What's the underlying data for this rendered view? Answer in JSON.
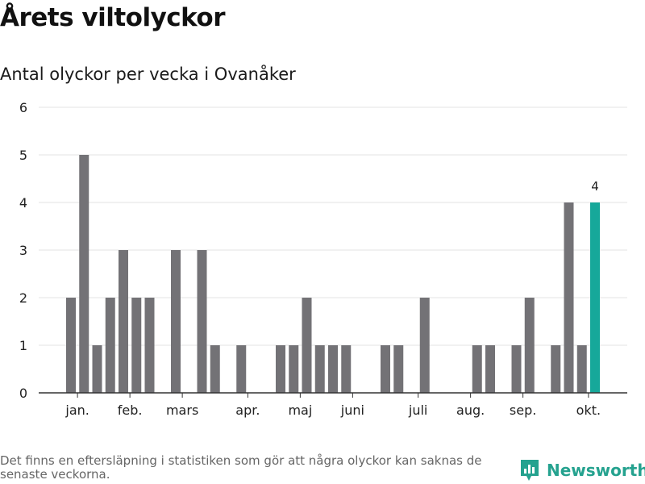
{
  "title": "Årets viltolyckor",
  "subtitle": "Antal olyckor per vecka i Ovanåker",
  "footnote": "Det finns en eftersläpning i statistiken som gör att några olyckor kan saknas de senaste veckorna.",
  "brand": {
    "name": "Newsworthy",
    "icon": "bar-chart-logo-icon",
    "color": "#25a28f"
  },
  "chart_data": {
    "type": "bar",
    "x": [
      2,
      3,
      4,
      5,
      6,
      7,
      8,
      9,
      10,
      11,
      12,
      13,
      14,
      15,
      16,
      17,
      18,
      19,
      20,
      21,
      22,
      23,
      24,
      25,
      26,
      27,
      28,
      29,
      30,
      31,
      32,
      33,
      34,
      35,
      36,
      37,
      38,
      39,
      40,
      41,
      42
    ],
    "values": [
      2,
      5,
      1,
      2,
      3,
      2,
      2,
      0,
      3,
      0,
      3,
      1,
      0,
      1,
      0,
      0,
      1,
      1,
      2,
      1,
      1,
      1,
      0,
      0,
      1,
      1,
      0,
      2,
      0,
      0,
      0,
      1,
      1,
      0,
      1,
      2,
      0,
      1,
      4,
      1,
      4
    ],
    "ylim": [
      0,
      6
    ],
    "yticks": [
      0,
      1,
      2,
      3,
      4,
      5,
      6
    ],
    "xticks": [
      {
        "label": "jan.",
        "x": 2.5
      },
      {
        "label": "feb.",
        "x": 6.5
      },
      {
        "label": "mars",
        "x": 10.5
      },
      {
        "label": "apr.",
        "x": 15.5
      },
      {
        "label": "maj",
        "x": 19.5
      },
      {
        "label": "juni",
        "x": 23.5
      },
      {
        "label": "juli",
        "x": 28.5
      },
      {
        "label": "aug.",
        "x": 32.5
      },
      {
        "label": "sep.",
        "x": 36.5
      },
      {
        "label": "okt.",
        "x": 41.5
      }
    ],
    "bar_color": "#737276",
    "highlight_color": "#16a89a",
    "highlight_index": 40,
    "highlight_label": "4",
    "grid": true
  }
}
